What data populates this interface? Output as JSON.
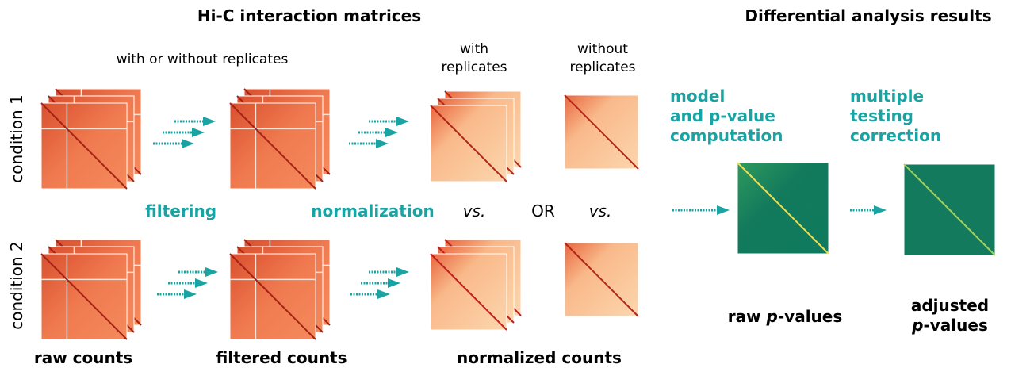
{
  "header": {
    "left_title": "Hi-C interaction matrices",
    "right_title": "Differential analysis results"
  },
  "replicates": {
    "any": "with or without replicates",
    "with": [
      "with",
      "replicates"
    ],
    "without": [
      "without",
      "replicates"
    ]
  },
  "conditions": [
    "condition 1",
    "condition 2"
  ],
  "steps": {
    "filtering": "filtering",
    "normalization": "normalization",
    "vs_1": "vs.",
    "or": "OR",
    "vs_2": "vs."
  },
  "model": [
    "model",
    "and p-value",
    "computation"
  ],
  "correction": [
    "multiple",
    "testing",
    "correction"
  ],
  "counts": [
    "raw counts",
    "filtered counts",
    "normalized counts"
  ],
  "raw_pvalues": [
    "raw ",
    "p",
    "-values"
  ],
  "adjusted_pvalues": {
    "line1": "adjusted",
    "line2": [
      "p",
      "-values"
    ]
  }
}
